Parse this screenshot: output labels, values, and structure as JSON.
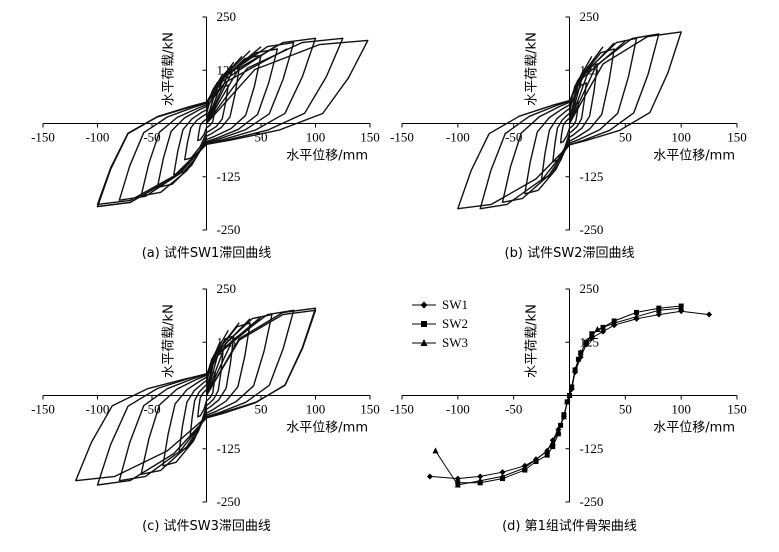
{
  "chart_data": [
    {
      "id": "a",
      "type": "line",
      "caption": "(a) 试件SW1滞回曲线",
      "xlabel": "水平位移/mm",
      "ylabel": "水平荷载/kN",
      "xlim": [
        -150,
        150
      ],
      "ylim": [
        -250,
        250
      ],
      "xticks": [
        -150,
        -100,
        -50,
        0,
        50,
        100,
        150
      ],
      "yticks": [
        -250,
        -125,
        125,
        250
      ],
      "loops": [
        {
          "xmin": -8,
          "xmax": 8,
          "ypos": 40,
          "yneg": -40
        },
        {
          "xmin": -20,
          "xmax": 20,
          "ypos": 90,
          "yneg": -85
        },
        {
          "xmin": -30,
          "xmax": 30,
          "ypos": 130,
          "yneg": -120
        },
        {
          "xmin": -45,
          "xmax": 50,
          "ypos": 160,
          "yneg": -150
        },
        {
          "xmin": -60,
          "xmax": 65,
          "ypos": 175,
          "yneg": -170
        },
        {
          "xmin": -80,
          "xmax": 80,
          "ypos": 190,
          "yneg": -180
        },
        {
          "xmin": -100,
          "xmax": 100,
          "ypos": 200,
          "yneg": -190
        },
        {
          "xmin": -100,
          "xmax": 125,
          "ypos": 200,
          "yneg": -195
        },
        {
          "xmin": -100,
          "xmax": 148,
          "ypos": 195,
          "yneg": -195
        }
      ]
    },
    {
      "id": "b",
      "type": "line",
      "caption": "(b) 试件SW2滞回曲线",
      "xlabel": "水平位移/mm",
      "ylabel": "水平荷载/kN",
      "xlim": [
        -150,
        150
      ],
      "ylim": [
        -250,
        250
      ],
      "xticks": [
        -150,
        -100,
        -50,
        0,
        50,
        100,
        150
      ],
      "yticks": [
        -250,
        -125,
        125,
        250
      ],
      "loops": [
        {
          "xmin": -8,
          "xmax": 8,
          "ypos": 50,
          "yneg": -45
        },
        {
          "xmin": -15,
          "xmax": 15,
          "ypos": 95,
          "yneg": -90
        },
        {
          "xmin": -25,
          "xmax": 25,
          "ypos": 140,
          "yneg": -130
        },
        {
          "xmin": -40,
          "xmax": 40,
          "ypos": 175,
          "yneg": -165
        },
        {
          "xmin": -60,
          "xmax": 60,
          "ypos": 200,
          "yneg": -185
        },
        {
          "xmin": -80,
          "xmax": 80,
          "ypos": 210,
          "yneg": -200
        },
        {
          "xmin": -100,
          "xmax": 100,
          "ypos": 215,
          "yneg": -200
        }
      ]
    },
    {
      "id": "c",
      "type": "line",
      "caption": "(c) 试件SW3滞回曲线",
      "xlabel": "水平位移/mm",
      "ylabel": "水平荷载/kN",
      "xlim": [
        -150,
        150
      ],
      "ylim": [
        -250,
        250
      ],
      "xticks": [
        -150,
        -100,
        -50,
        0,
        50,
        100,
        150
      ],
      "yticks": [
        -250,
        -125,
        125,
        250
      ],
      "loops": [
        {
          "xmin": -8,
          "xmax": 8,
          "ypos": 55,
          "yneg": -50
        },
        {
          "xmin": -15,
          "xmax": 15,
          "ypos": 100,
          "yneg": -95
        },
        {
          "xmin": -25,
          "xmax": 25,
          "ypos": 140,
          "yneg": -130
        },
        {
          "xmin": -40,
          "xmax": 40,
          "ypos": 170,
          "yneg": -165
        },
        {
          "xmin": -60,
          "xmax": 60,
          "ypos": 190,
          "yneg": -185
        },
        {
          "xmin": -80,
          "xmax": 80,
          "ypos": 200,
          "yneg": -200
        },
        {
          "xmin": -100,
          "xmax": 100,
          "ypos": 205,
          "yneg": -210
        },
        {
          "xmin": -120,
          "xmax": 100,
          "ypos": 200,
          "yneg": -200
        }
      ]
    },
    {
      "id": "d",
      "type": "line",
      "caption": "(d) 第1组试件骨架曲线",
      "xlabel": "水平位移/mm",
      "ylabel": "水平荷载/kN",
      "xlim": [
        -150,
        150
      ],
      "ylim": [
        -250,
        250
      ],
      "xticks": [
        -150,
        -100,
        -50,
        0,
        50,
        100,
        150
      ],
      "yticks": [
        -250,
        -125,
        125,
        250
      ],
      "series": [
        {
          "name": "SW1",
          "marker": "diamond",
          "x": [
            -125,
            -100,
            -80,
            -60,
            -40,
            -30,
            -20,
            -15,
            -10,
            -5,
            -2,
            0,
            2,
            5,
            10,
            15,
            20,
            30,
            40,
            60,
            80,
            100,
            125
          ],
          "y": [
            -190,
            -195,
            -190,
            -180,
            -165,
            -150,
            -130,
            -105,
            -80,
            -50,
            -15,
            0,
            15,
            55,
            90,
            120,
            135,
            150,
            165,
            180,
            190,
            198,
            190
          ]
        },
        {
          "name": "SW2",
          "marker": "square",
          "x": [
            -100,
            -80,
            -60,
            -40,
            -30,
            -20,
            -15,
            -10,
            -8,
            -5,
            -2,
            0,
            2,
            5,
            8,
            10,
            15,
            20,
            30,
            40,
            60,
            80,
            100
          ],
          "y": [
            -205,
            -205,
            -195,
            -175,
            -155,
            -140,
            -120,
            -90,
            -70,
            -45,
            -15,
            0,
            20,
            60,
            85,
            100,
            125,
            145,
            160,
            175,
            195,
            205,
            210
          ]
        },
        {
          "name": "SW3",
          "marker": "triangle",
          "x": [
            -120,
            -100,
            -80,
            -60,
            -40,
            -30,
            -20,
            -15,
            -10,
            -5,
            -2,
            0,
            2,
            5,
            10,
            15,
            20,
            25,
            40,
            60,
            80,
            100
          ],
          "y": [
            -130,
            -210,
            -200,
            -190,
            -170,
            -150,
            -130,
            -110,
            -85,
            -50,
            -15,
            0,
            20,
            60,
            100,
            125,
            140,
            155,
            170,
            185,
            200,
            205
          ]
        }
      ],
      "legend": "top-left"
    }
  ]
}
